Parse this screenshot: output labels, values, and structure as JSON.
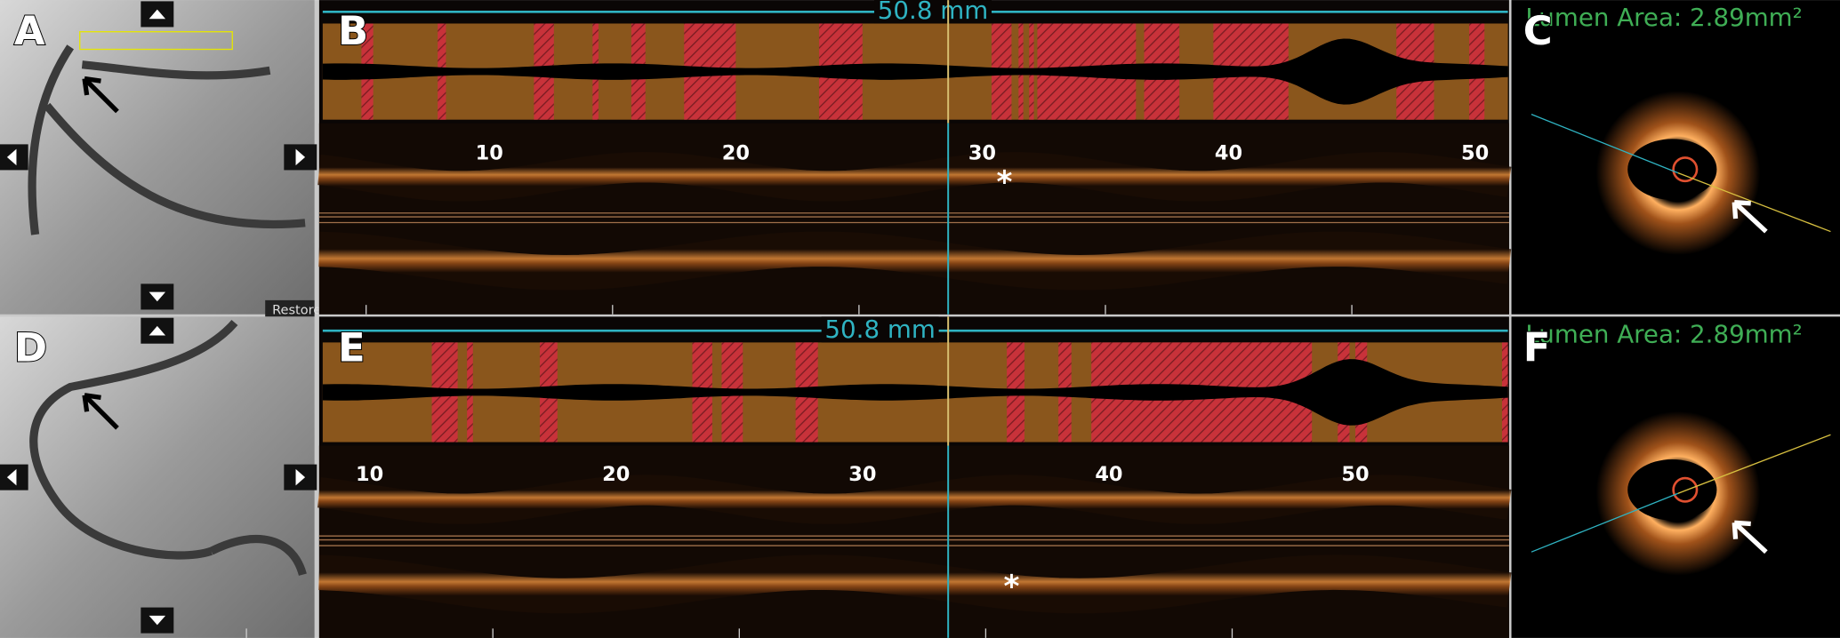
{
  "panel_labels": [
    "A",
    "B",
    "C",
    "D",
    "E",
    "F"
  ],
  "top": {
    "length": "50.8 mm",
    "ticks": [
      10,
      20,
      30,
      40,
      50
    ],
    "marker": "*",
    "lumen_area": "Lumen Area: 2.89mm²",
    "restore": "Restore"
  },
  "bottom": {
    "length": "50.8 mm",
    "ticks": [
      10,
      20,
      30,
      40,
      50
    ],
    "marker": "*",
    "lumen_area": "Lumen Area: 2.89mm²"
  }
}
